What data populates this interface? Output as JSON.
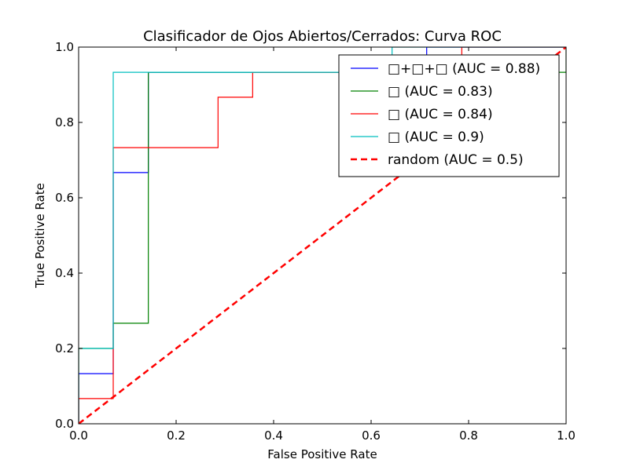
{
  "chart_data": {
    "type": "line",
    "title": "Clasificador de Ojos Abiertos/Cerrados: Curva ROC",
    "xlabel": "False Positive Rate",
    "ylabel": "True Positive Rate",
    "xlim": [
      0,
      1
    ],
    "ylim": [
      0,
      1
    ],
    "xticks": [
      "0.0",
      "0.2",
      "0.4",
      "0.6",
      "0.8",
      "1.0"
    ],
    "yticks": [
      "0.0",
      "0.2",
      "0.4",
      "0.6",
      "0.8",
      "1.0"
    ],
    "grid": false,
    "legend_position": "top-right",
    "series": [
      {
        "name": "□+□+□ (AUC = 0.88)",
        "color": "#0000ff",
        "style": "solid",
        "x": [
          0,
          0,
          0.071,
          0.071,
          0.143,
          0.143,
          0.714,
          0.714,
          1.0
        ],
        "y": [
          0,
          0.133,
          0.133,
          0.667,
          0.667,
          0.933,
          0.933,
          1.0,
          1.0
        ]
      },
      {
        "name": "□ (AUC = 0.83)",
        "color": "#008000",
        "style": "solid",
        "x": [
          0,
          0,
          0.071,
          0.071,
          0.143,
          0.143,
          1.0,
          1.0
        ],
        "y": [
          0,
          0.2,
          0.2,
          0.267,
          0.267,
          0.933,
          0.933,
          1.0
        ]
      },
      {
        "name": "□ (AUC = 0.84)",
        "color": "#ff0000",
        "style": "solid",
        "x": [
          0,
          0,
          0.071,
          0.071,
          0.286,
          0.286,
          0.357,
          0.357,
          0.786,
          0.786,
          1.0
        ],
        "y": [
          0,
          0.067,
          0.067,
          0.733,
          0.733,
          0.867,
          0.867,
          0.933,
          0.933,
          1.0,
          1.0
        ]
      },
      {
        "name": "□ (AUC = 0.9)",
        "color": "#00bfbf",
        "style": "solid",
        "x": [
          0,
          0,
          0.071,
          0.071,
          0.643,
          0.643,
          1.0
        ],
        "y": [
          0,
          0.2,
          0.2,
          0.933,
          0.933,
          1.0,
          1.0
        ]
      },
      {
        "name": "random (AUC = 0.5)",
        "color": "#ff0000",
        "style": "dashed",
        "x": [
          0,
          1
        ],
        "y": [
          0,
          1
        ]
      }
    ]
  }
}
